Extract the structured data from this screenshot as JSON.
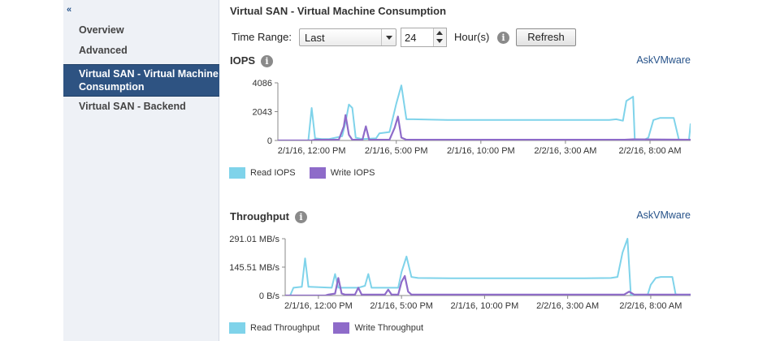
{
  "sidebar": {
    "collapse_glyph": "«",
    "items": [
      {
        "label": "Overview",
        "selected": false
      },
      {
        "label": "Advanced",
        "selected": false
      },
      {
        "label": "Virtual SAN - Virtual Machine Consumption",
        "selected": true
      },
      {
        "label": "Virtual SAN - Backend",
        "selected": false
      }
    ]
  },
  "main": {
    "title": "Virtual SAN - Virtual Machine Consumption",
    "toolbar": {
      "time_range_label": "Time Range:",
      "range_select_value": "Last",
      "hours_value": "24",
      "hours_label": "Hour(s)",
      "refresh_label": "Refresh"
    }
  },
  "colors": {
    "read": "#7fd3ea",
    "write": "#8e6bc9",
    "link": "#27538a"
  },
  "chart_data": [
    {
      "type": "line",
      "title": "IOPS",
      "link": "AskVMware",
      "xlabel": "",
      "ylabel": "",
      "y_ticks": [
        "4086",
        "2043",
        "0"
      ],
      "ylim": [
        0,
        4086
      ],
      "x_ticks": [
        "2/1/16, 12:00 PM",
        "2/1/16, 5:00 PM",
        "2/1/16, 10:00 PM",
        "2/2/16, 3:00 AM",
        "2/2/16, 8:00 AM"
      ],
      "x_tick_hours": [
        2,
        7,
        12,
        17,
        22
      ],
      "xlim_hours": [
        0,
        24.4
      ],
      "legend": [
        "Read IOPS",
        "Write IOPS"
      ],
      "series": [
        {
          "name": "Read IOPS",
          "points": [
            [
              0,
              0
            ],
            [
              1.8,
              0
            ],
            [
              2.0,
              2300
            ],
            [
              2.2,
              150
            ],
            [
              2.6,
              100
            ],
            [
              3.0,
              100
            ],
            [
              3.8,
              300
            ],
            [
              4.0,
              1300
            ],
            [
              4.2,
              2550
            ],
            [
              4.4,
              2300
            ],
            [
              4.6,
              200
            ],
            [
              5.0,
              100
            ],
            [
              5.8,
              150
            ],
            [
              6.0,
              500
            ],
            [
              6.6,
              600
            ],
            [
              7.0,
              2600
            ],
            [
              7.3,
              3900
            ],
            [
              7.6,
              1500
            ],
            [
              8.0,
              1500
            ],
            [
              10.0,
              1450
            ],
            [
              12.0,
              1450
            ],
            [
              14.0,
              1450
            ],
            [
              16.0,
              1450
            ],
            [
              17.0,
              1450
            ],
            [
              18.0,
              1450
            ],
            [
              19.6,
              1450
            ],
            [
              20.0,
              1500
            ],
            [
              20.4,
              1400
            ],
            [
              20.6,
              2800
            ],
            [
              21.0,
              3100
            ],
            [
              21.1,
              0
            ],
            [
              21.6,
              0
            ],
            [
              21.9,
              200
            ],
            [
              22.2,
              1450
            ],
            [
              22.6,
              1600
            ],
            [
              23.4,
              1600
            ],
            [
              23.7,
              100
            ],
            [
              24.0,
              0
            ],
            [
              24.3,
              0
            ],
            [
              24.4,
              1200
            ]
          ]
        },
        {
          "name": "Write IOPS",
          "points": [
            [
              0,
              0
            ],
            [
              2.0,
              0
            ],
            [
              2.2,
              50
            ],
            [
              3.6,
              50
            ],
            [
              3.9,
              1000
            ],
            [
              4.0,
              1800
            ],
            [
              4.2,
              400
            ],
            [
              4.4,
              50
            ],
            [
              5.0,
              50
            ],
            [
              5.2,
              1000
            ],
            [
              5.4,
              50
            ],
            [
              6.6,
              50
            ],
            [
              6.9,
              900
            ],
            [
              7.1,
              1700
            ],
            [
              7.3,
              200
            ],
            [
              7.6,
              50
            ],
            [
              20.5,
              50
            ],
            [
              21.0,
              80
            ],
            [
              24.4,
              50
            ]
          ]
        }
      ]
    },
    {
      "type": "line",
      "title": "Throughput",
      "link": "AskVMware",
      "xlabel": "",
      "ylabel": "",
      "y_ticks": [
        "291.01 MB/s",
        "145.51 MB/s",
        "0 B/s"
      ],
      "ylim": [
        0,
        291.01
      ],
      "x_ticks": [
        "2/1/16, 12:00 PM",
        "2/1/16, 5:00 PM",
        "2/1/16, 10:00 PM",
        "2/2/16, 3:00 AM",
        "2/2/16, 8:00 AM"
      ],
      "x_tick_hours": [
        2,
        7,
        12,
        17,
        22
      ],
      "xlim_hours": [
        0,
        24.4
      ],
      "legend": [
        "Read Throughput",
        "Write Throughput"
      ],
      "series": [
        {
          "name": "Read Throughput",
          "points": [
            [
              0,
              0
            ],
            [
              0.3,
              0
            ],
            [
              0.5,
              40
            ],
            [
              1.0,
              45
            ],
            [
              1.2,
              190
            ],
            [
              1.4,
              45
            ],
            [
              2.8,
              40
            ],
            [
              3.0,
              110
            ],
            [
              3.2,
              40
            ],
            [
              4.4,
              40
            ],
            [
              4.8,
              50
            ],
            [
              5.0,
              110
            ],
            [
              5.2,
              40
            ],
            [
              6.8,
              40
            ],
            [
              7.0,
              120
            ],
            [
              7.3,
              200
            ],
            [
              7.6,
              95
            ],
            [
              8.0,
              90
            ],
            [
              10.0,
              88
            ],
            [
              12.0,
              88
            ],
            [
              15.0,
              88
            ],
            [
              18.0,
              88
            ],
            [
              19.6,
              90
            ],
            [
              20.0,
              95
            ],
            [
              20.3,
              220
            ],
            [
              20.6,
              291
            ],
            [
              20.8,
              5
            ],
            [
              21.0,
              0
            ],
            [
              21.8,
              0
            ],
            [
              22.0,
              55
            ],
            [
              22.3,
              90
            ],
            [
              22.6,
              95
            ],
            [
              23.0,
              95
            ],
            [
              23.3,
              95
            ],
            [
              23.5,
              5
            ],
            [
              24.4,
              0
            ]
          ]
        },
        {
          "name": "Write Throughput",
          "points": [
            [
              0,
              0
            ],
            [
              2.4,
              0
            ],
            [
              2.6,
              5
            ],
            [
              3.0,
              10
            ],
            [
              3.2,
              90
            ],
            [
              3.4,
              10
            ],
            [
              3.6,
              5
            ],
            [
              4.2,
              5
            ],
            [
              4.4,
              40
            ],
            [
              4.6,
              5
            ],
            [
              6.0,
              5
            ],
            [
              6.2,
              30
            ],
            [
              6.4,
              5
            ],
            [
              6.8,
              5
            ],
            [
              7.0,
              70
            ],
            [
              7.2,
              100
            ],
            [
              7.4,
              20
            ],
            [
              7.6,
              5
            ],
            [
              10.0,
              5
            ],
            [
              12.0,
              5
            ],
            [
              14.0,
              5
            ],
            [
              16.0,
              5
            ],
            [
              18.0,
              5
            ],
            [
              20.4,
              5
            ],
            [
              20.7,
              20
            ],
            [
              21.0,
              5
            ],
            [
              24.4,
              5
            ]
          ]
        }
      ]
    }
  ]
}
